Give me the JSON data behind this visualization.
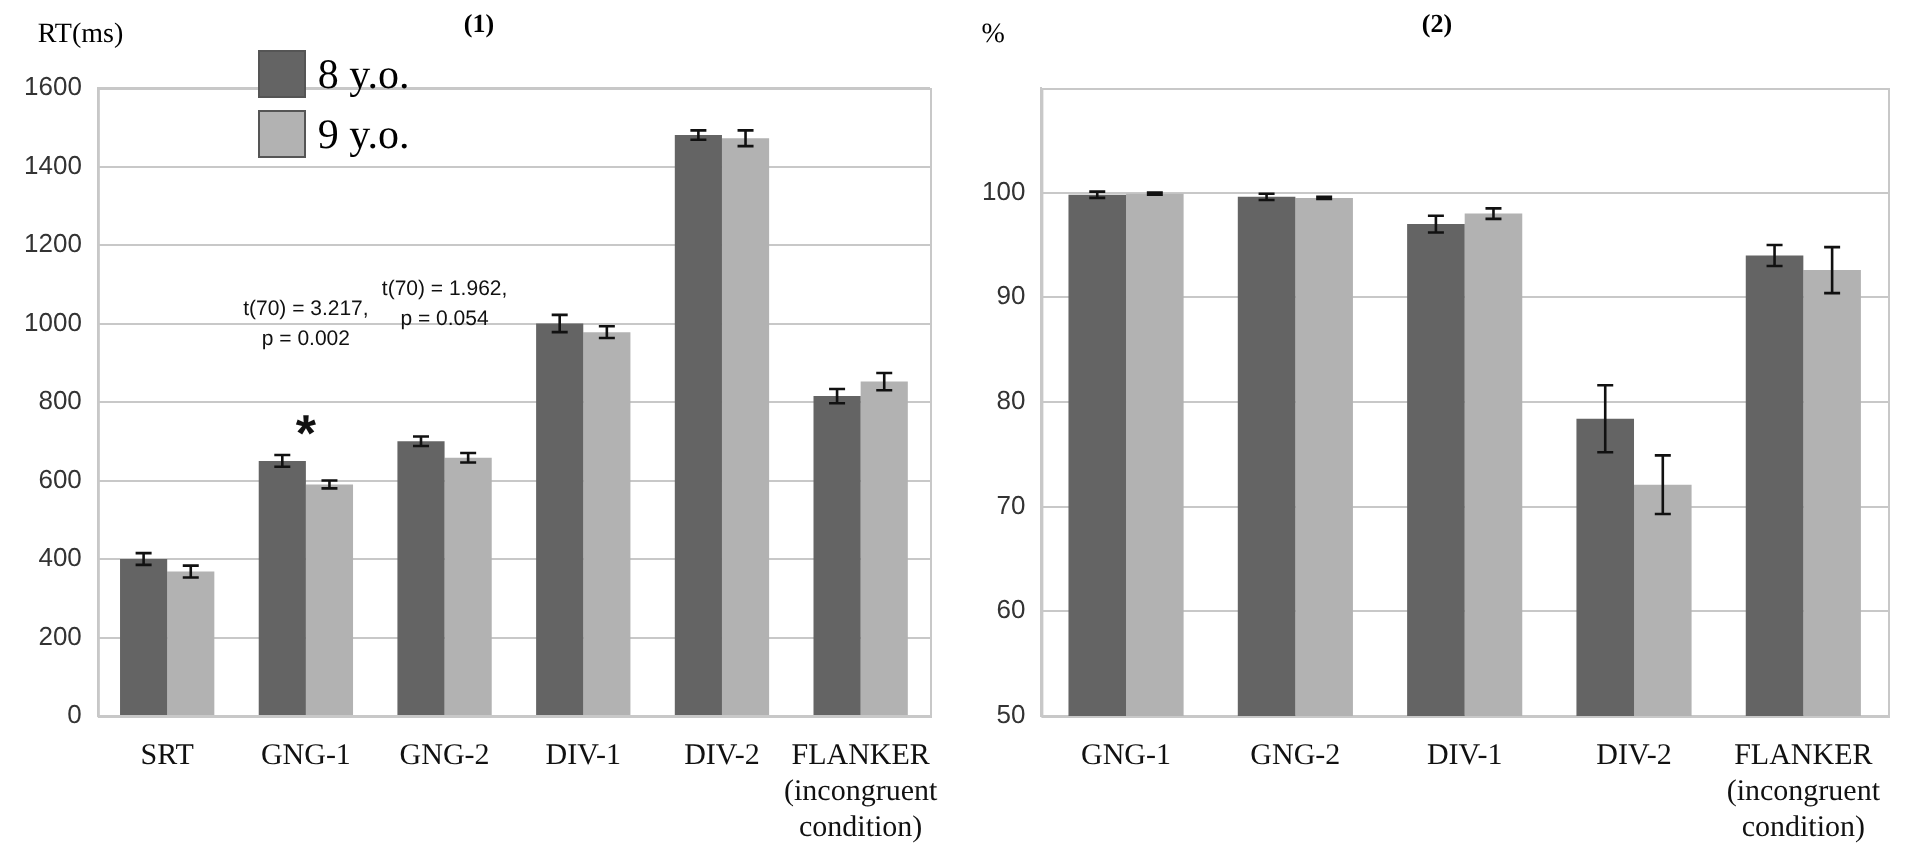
{
  "chart_data": [
    {
      "type": "bar",
      "title": "(1)",
      "ylabel": "RT(ms)",
      "categories": [
        "SRT",
        "GNG-1",
        "GNG-2",
        "DIV-1",
        "DIV-2",
        "FLANKER (incongruent condition)"
      ],
      "series": [
        {
          "name": "8 y.o.",
          "color": "#646464",
          "values": [
            400,
            650,
            700,
            1000,
            1480,
            815
          ],
          "errors": [
            15,
            15,
            12,
            22,
            12,
            18
          ]
        },
        {
          "name": "9 y.o.",
          "color": "#b2b2b2",
          "values": [
            368,
            590,
            658,
            978,
            1472,
            852
          ],
          "errors": [
            15,
            10,
            12,
            15,
            20,
            22
          ]
        }
      ],
      "ylim": [
        0,
        1600
      ],
      "yticks": [
        0,
        200,
        400,
        600,
        800,
        1000,
        1200,
        1400,
        1600
      ],
      "grid": "y",
      "legend": "top left",
      "annotations": [
        "t(70) = 3.217,\np = 0.002",
        "*",
        "t(70) = 1.962,\np = 0.054"
      ]
    },
    {
      "type": "bar",
      "title": "(2)",
      "ylabel": "%",
      "categories": [
        "GNG-1",
        "GNG-2",
        "DIV-1",
        "DIV-2",
        "FLANKER (incongruent condition)"
      ],
      "series": [
        {
          "color": "#646464",
          "values": [
            99.8,
            99.6,
            97,
            78.4,
            94
          ],
          "errors": [
            0.3,
            0.3,
            0.8,
            3.2,
            1
          ]
        },
        {
          "color": "#b2b2b2",
          "values": [
            99.9,
            99.5,
            98,
            72.1,
            92.6
          ],
          "errors": [
            0.1,
            0.1,
            0.5,
            2.8,
            2.2
          ]
        }
      ],
      "ylim": [
        50,
        110
      ],
      "yticks": [
        50,
        60,
        70,
        80,
        90,
        100
      ],
      "grid": "y",
      "legend": false
    }
  ]
}
